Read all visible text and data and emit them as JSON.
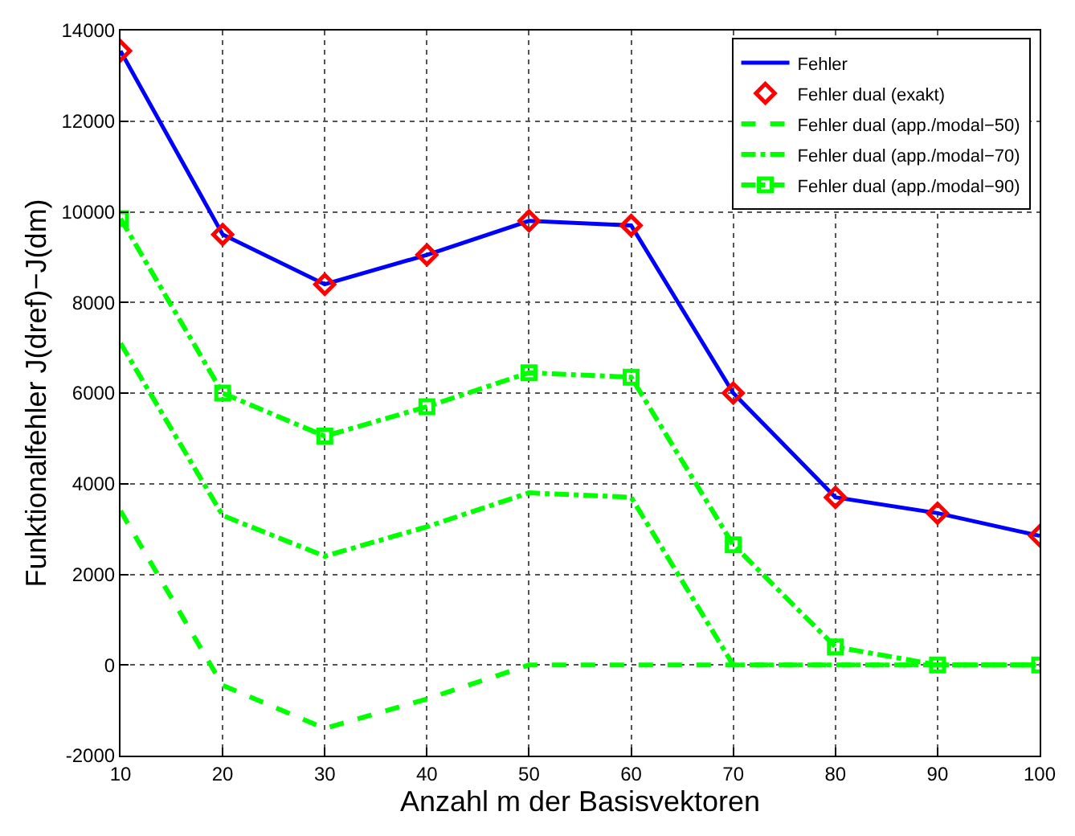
{
  "chart_data": {
    "type": "line",
    "xlabel": "Anzahl m der Basisvektoren",
    "ylabel": "Funktionalfehler J(dref)−J(dm)",
    "x": [
      10,
      20,
      30,
      40,
      50,
      60,
      70,
      80,
      90,
      100
    ],
    "series": [
      {
        "name": "Fehler",
        "color": "#0000ff",
        "line_style": "solid",
        "marker": "none",
        "values": [
          13550,
          9500,
          8400,
          9050,
          9800,
          9700,
          6000,
          3700,
          3350,
          2850
        ]
      },
      {
        "name": "Fehler dual (exakt)",
        "type": "scatter",
        "color": "#ff0000",
        "marker": "diamond",
        "values": [
          13550,
          9500,
          8400,
          9050,
          9800,
          9700,
          6000,
          3700,
          3350,
          2850
        ]
      },
      {
        "name": "Fehler dual (app./modal−50)",
        "color": "#00ff00",
        "line_style": "dashed",
        "marker": "none",
        "values": [
          3400,
          -450,
          -1400,
          -750,
          0,
          0,
          0,
          0,
          0,
          0
        ]
      },
      {
        "name": "Fehler dual (app./modal−70)",
        "color": "#00ff00",
        "line_style": "dashdot",
        "marker": "none",
        "values": [
          7100,
          3300,
          2400,
          3050,
          3800,
          3700,
          0,
          0,
          0,
          0
        ]
      },
      {
        "name": "Fehler dual (app./modal−90)",
        "color": "#00ff00",
        "line_style": "dashdot",
        "marker": "square",
        "values": [
          9850,
          6000,
          5050,
          5700,
          6450,
          6350,
          2650,
          400,
          0,
          0
        ]
      }
    ],
    "xlim": [
      10,
      100
    ],
    "xticks": [
      10,
      20,
      30,
      40,
      50,
      60,
      70,
      80,
      90,
      100
    ],
    "ylim": [
      -2000,
      14000
    ],
    "yticks": [
      -2000,
      0,
      2000,
      4000,
      6000,
      8000,
      10000,
      12000,
      14000
    ],
    "grid": true,
    "legend": "top right"
  }
}
